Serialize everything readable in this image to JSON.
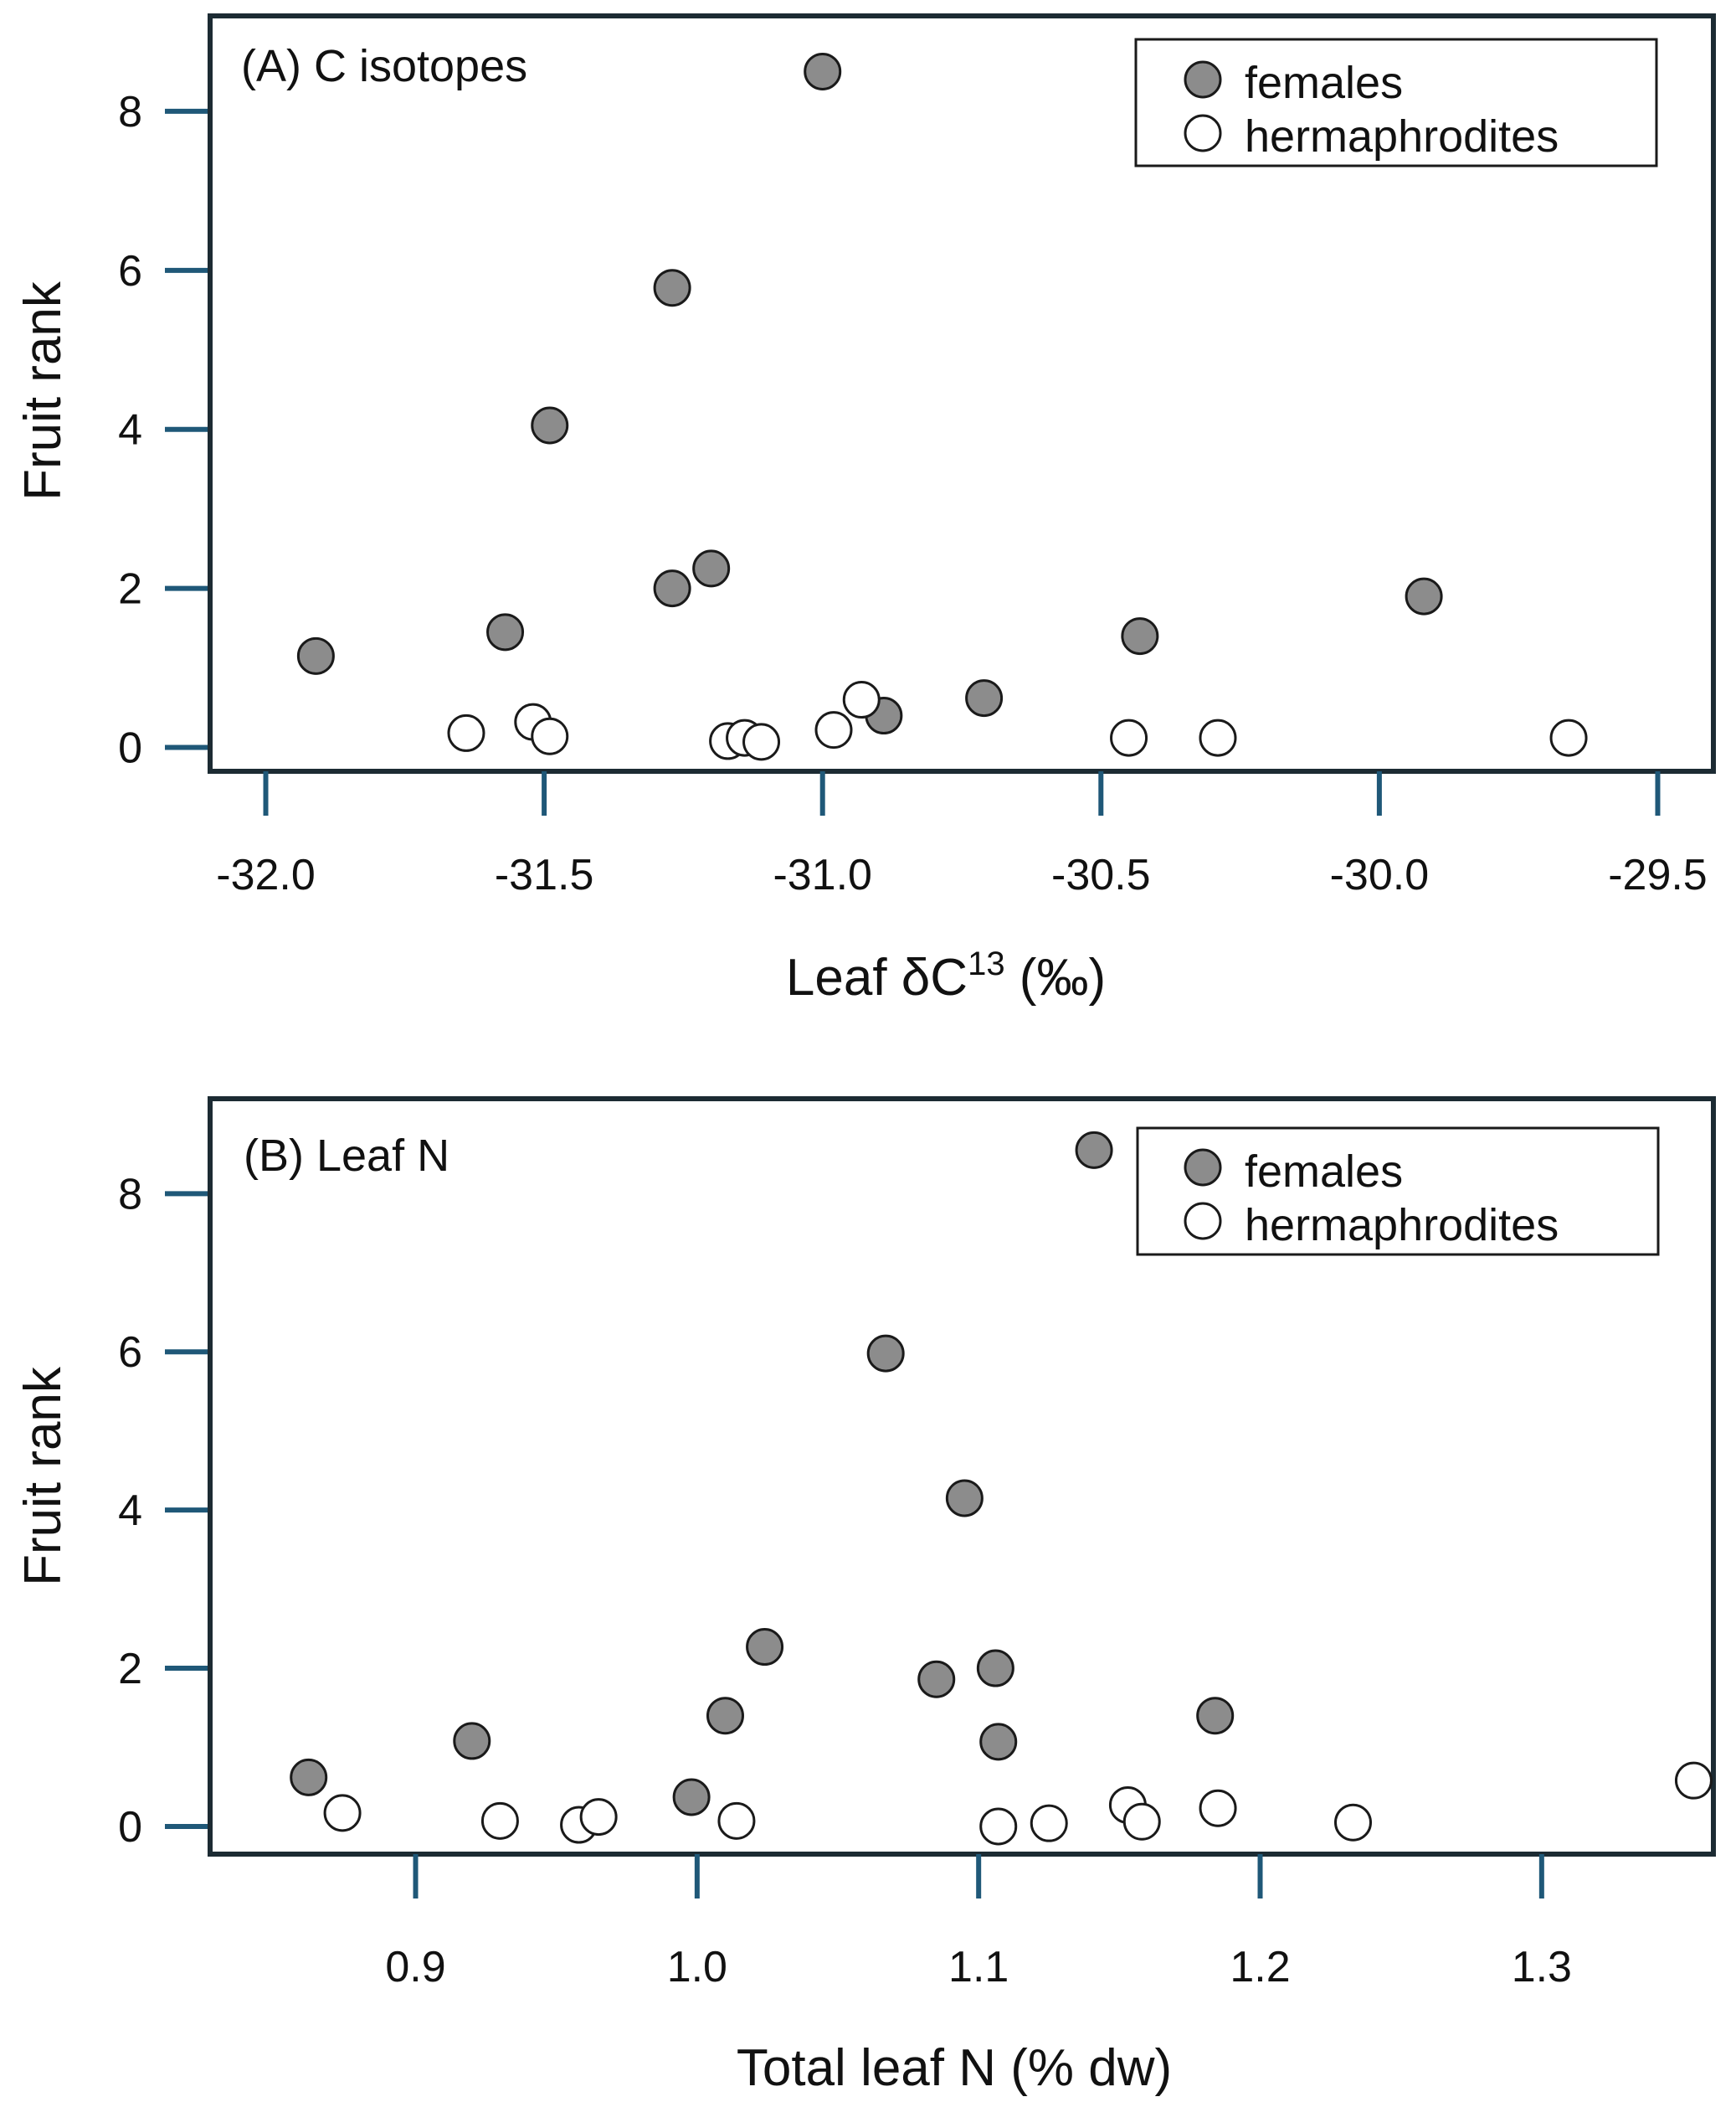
{
  "chart_data": [
    {
      "type": "scatter",
      "title": "(A) C isotopes",
      "xlabel_main": "Leaf δC",
      "xlabel_sup": "13",
      "xlabel_unit": " (‰)",
      "ylabel": "Fruit rank",
      "xlim": [
        -32.1,
        -29.4
      ],
      "ylim": [
        -0.3,
        9.2
      ],
      "xticks": [
        -32.0,
        -31.5,
        -31.0,
        -30.5,
        -30.0,
        -29.5
      ],
      "xtick_labels": [
        "-32.0",
        "-31.5",
        "-31.0",
        "-30.5",
        "-30.0",
        "-29.5"
      ],
      "yticks": [
        0,
        2,
        4,
        6,
        8
      ],
      "ytick_labels": [
        "0",
        "2",
        "4",
        "6",
        "8"
      ],
      "legend": {
        "position": "top-right",
        "females": "females",
        "hermaphrodites": "hermaphrodites"
      },
      "series": [
        {
          "name": "females",
          "style": "filled",
          "x": [
            -31.91,
            -31.57,
            -31.49,
            -31.27,
            -31.27,
            -31.2,
            -31.0,
            -30.89,
            -30.71,
            -30.43,
            -29.92
          ],
          "y": [
            1.15,
            1.45,
            4.05,
            5.78,
            2.0,
            2.25,
            8.5,
            0.4,
            0.62,
            1.4,
            1.9
          ]
        },
        {
          "name": "hermaphrodites",
          "style": "open",
          "x": [
            -31.64,
            -31.52,
            -31.49,
            -31.17,
            -31.14,
            -31.11,
            -30.98,
            -30.93,
            -30.45,
            -30.29,
            -29.66
          ],
          "y": [
            0.18,
            0.32,
            0.14,
            0.08,
            0.12,
            0.07,
            0.22,
            0.6,
            0.12,
            0.12,
            0.12
          ]
        }
      ]
    },
    {
      "type": "scatter",
      "title": "(B) Leaf N",
      "xlabel_main": "Total leaf N (% dw)",
      "xlabel_sup": "",
      "xlabel_unit": "",
      "ylabel": "Fruit rank",
      "xlim": [
        0.827,
        1.361
      ],
      "ylim": [
        -0.35,
        9.2
      ],
      "xticks": [
        0.9,
        1.0,
        1.1,
        1.2,
        1.3
      ],
      "xtick_labels": [
        "0.9",
        "1.0",
        "1.1",
        "1.2",
        "1.3"
      ],
      "yticks": [
        0,
        2,
        4,
        6,
        8
      ],
      "ytick_labels": [
        "0",
        "2",
        "4",
        "6",
        "8"
      ],
      "legend": {
        "position": "top-right",
        "females": "females",
        "hermaphrodites": "hermaphrodites"
      },
      "series": [
        {
          "name": "females",
          "style": "filled",
          "x": [
            0.862,
            0.92,
            0.998,
            1.01,
            1.024,
            1.067,
            1.085,
            1.095,
            1.106,
            1.107,
            1.141,
            1.184
          ],
          "y": [
            0.62,
            1.08,
            0.37,
            1.4,
            2.27,
            5.98,
            1.86,
            4.15,
            2.0,
            1.07,
            8.55,
            1.4
          ]
        },
        {
          "name": "hermaphrodites",
          "style": "open",
          "x": [
            0.874,
            0.93,
            0.958,
            0.965,
            1.014,
            1.107,
            1.125,
            1.153,
            1.158,
            1.185,
            1.233,
            1.354
          ],
          "y": [
            0.17,
            0.07,
            0.02,
            0.12,
            0.07,
            0.0,
            0.04,
            0.27,
            0.06,
            0.23,
            0.05,
            0.58
          ]
        }
      ]
    }
  ]
}
